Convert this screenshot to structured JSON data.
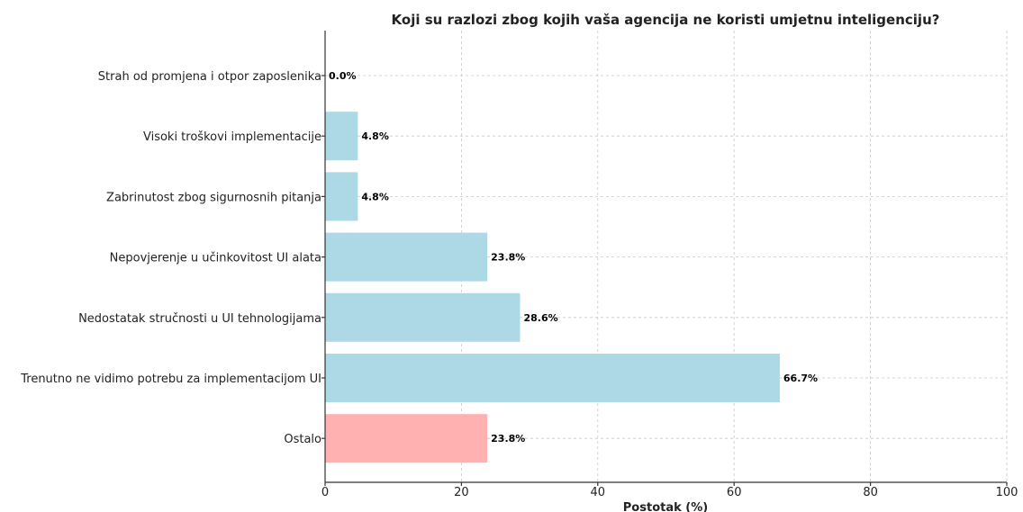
{
  "chart_data": {
    "type": "bar",
    "orientation": "horizontal",
    "title": "Koji su razlozi zbog kojih vaša agencija ne koristi umjetnu inteligenciju?",
    "xlabel": "Postotak (%)",
    "ylabel": "",
    "xlim": [
      0,
      100
    ],
    "xticks": [
      0,
      20,
      40,
      60,
      80,
      100
    ],
    "grid": true,
    "categories": [
      "Strah od promjena i otpor zaposlenika",
      "Visoki troškovi implementacije",
      "Zabrinutost zbog sigurnosnih pitanja",
      "Nepovjerenje u učinkovitost UI alata",
      "Nedostatak stručnosti u UI tehnologijama",
      "Trenutno ne vidimo potrebu za implementacijom UI",
      "Ostalo"
    ],
    "values": [
      0.0,
      4.8,
      4.8,
      23.8,
      28.6,
      66.7,
      23.8
    ],
    "value_labels": [
      "0.0%",
      "4.8%",
      "4.8%",
      "23.8%",
      "28.6%",
      "66.7%",
      "23.8%"
    ],
    "bar_colors": [
      "#add8e6",
      "#add8e6",
      "#add8e6",
      "#add8e6",
      "#add8e6",
      "#add8e6",
      "#ffb0b0"
    ]
  }
}
